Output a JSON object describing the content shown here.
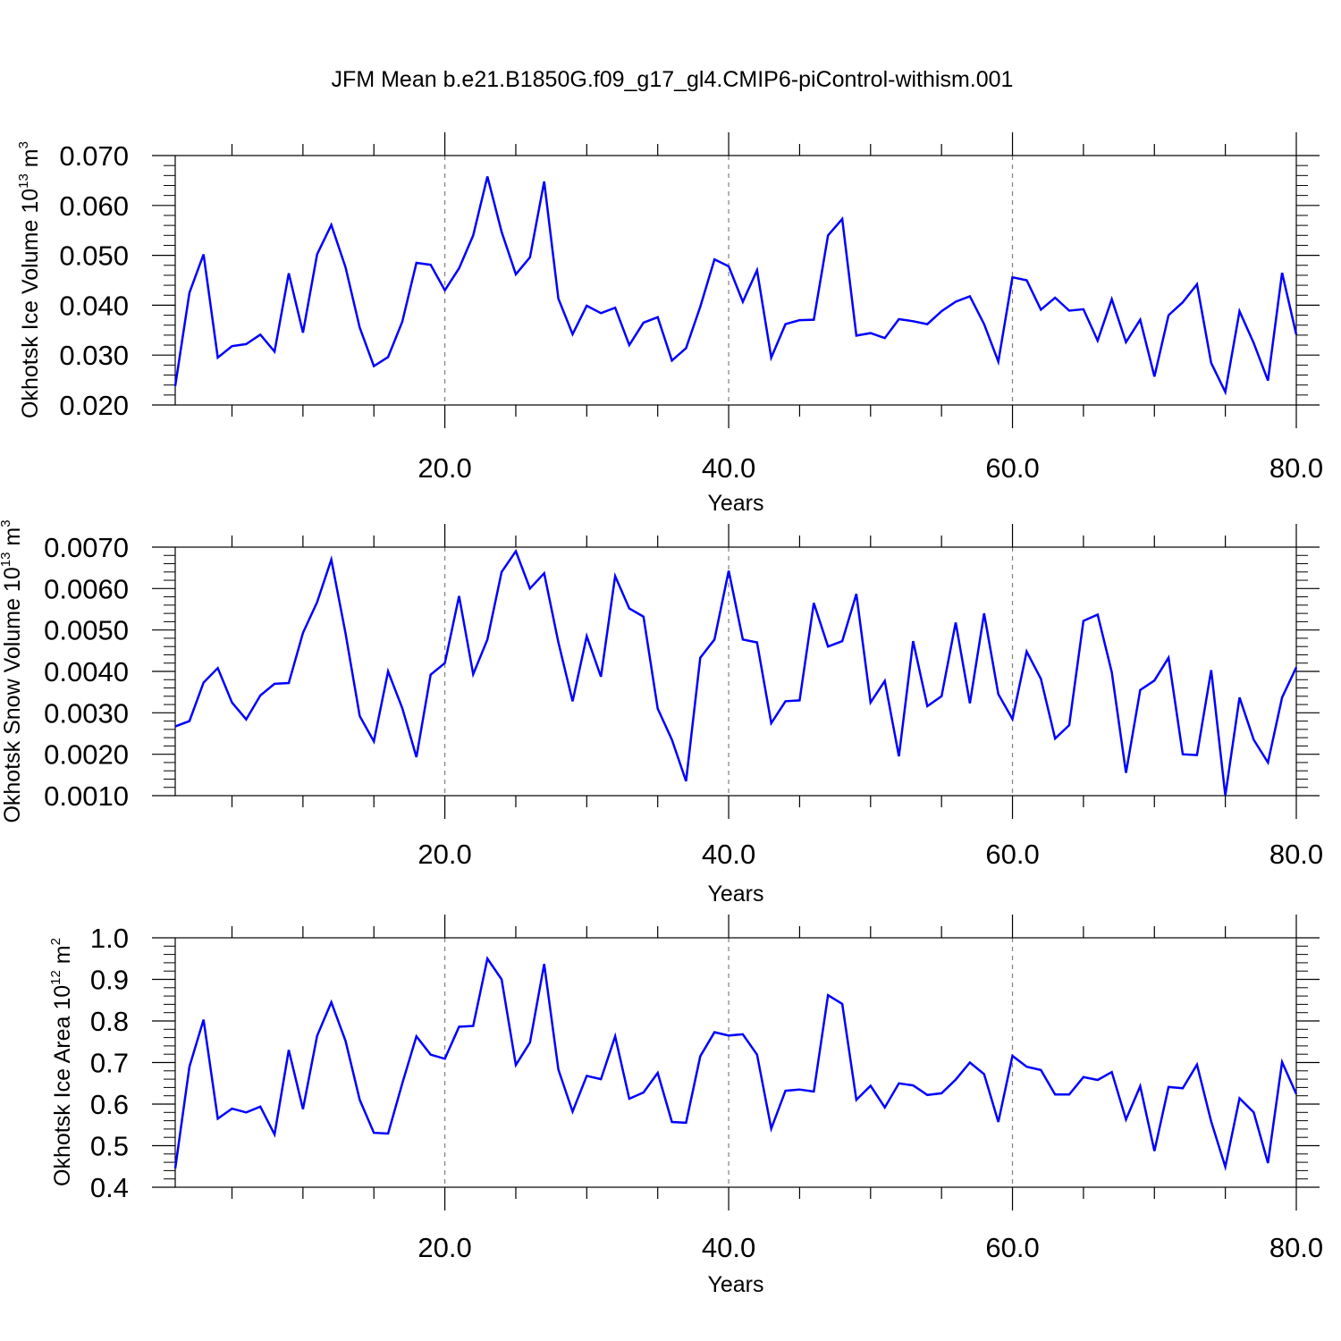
{
  "title": "JFM Mean b.e21.B1850G.f09_g17_gl4.CMIP6-piControl-withism.001",
  "colors": {
    "line": "#0000ff",
    "axis": "#000000",
    "grid": "#808080"
  },
  "chart_data": [
    {
      "type": "line",
      "xlabel": "Years",
      "ylabel": {
        "text": "Okhotsk Ice Volume 10",
        "exp": "13",
        "unit": "m",
        "unit_exp": "3"
      },
      "xlim": [
        1,
        80
      ],
      "ylim": [
        0.02,
        0.07
      ],
      "xticks": [
        20,
        40,
        60,
        80
      ],
      "xtick_labels": [
        "20.0",
        "40.0",
        "60.0",
        "80.0"
      ],
      "yticks": [
        0.02,
        0.03,
        0.04,
        0.05,
        0.06,
        0.07
      ],
      "ytick_labels": [
        "0.020",
        "0.030",
        "0.040",
        "0.050",
        "0.060",
        "0.070"
      ],
      "grid": "dashed vertical at major x ticks",
      "series": [
        {
          "values": [
            0.0238,
            0.0425,
            0.0502,
            0.0295,
            0.0318,
            0.0322,
            0.0341,
            0.0307,
            0.0464,
            0.0345,
            0.0502,
            0.0561,
            0.0476,
            0.0355,
            0.0278,
            0.0296,
            0.0367,
            0.0485,
            0.0481,
            0.043,
            0.0474,
            0.054,
            0.0658,
            0.0547,
            0.0462,
            0.0496,
            0.0648,
            0.0413,
            0.0342,
            0.0399,
            0.0384,
            0.0395,
            0.032,
            0.0365,
            0.0376,
            0.0289,
            0.0314,
            0.0397,
            0.0492,
            0.0478,
            0.0407,
            0.047,
            0.0295,
            0.0362,
            0.037,
            0.0371,
            0.054,
            0.0573,
            0.0339,
            0.0344,
            0.0334,
            0.0372,
            0.0368,
            0.0362,
            0.0388,
            0.0407,
            0.0418,
            0.0362,
            0.0287,
            0.0456,
            0.045,
            0.0391,
            0.0415,
            0.0389,
            0.0392,
            0.0329,
            0.0412,
            0.0326,
            0.0371,
            0.0257,
            0.038,
            0.0406,
            0.0442,
            0.0284,
            0.0226,
            0.0388,
            0.0324,
            0.0249,
            0.0465,
            0.0341
          ]
        }
      ]
    },
    {
      "type": "line",
      "xlabel": "Years",
      "ylabel": {
        "text": "Okhotsk Snow Volume 10",
        "exp": "13",
        "unit": "m",
        "unit_exp": "3"
      },
      "xlim": [
        1,
        80
      ],
      "ylim": [
        0.001,
        0.007
      ],
      "xticks": [
        20,
        40,
        60,
        80
      ],
      "xtick_labels": [
        "20.0",
        "40.0",
        "60.0",
        "80.0"
      ],
      "yticks": [
        0.001,
        0.002,
        0.003,
        0.004,
        0.005,
        0.006,
        0.007
      ],
      "ytick_labels": [
        "0.0010",
        "0.0020",
        "0.0030",
        "0.0040",
        "0.0050",
        "0.0060",
        "0.0070"
      ],
      "grid": "dashed vertical at major x ticks",
      "series": [
        {
          "values": [
            0.00267,
            0.0028,
            0.00373,
            0.00408,
            0.00325,
            0.00284,
            0.00342,
            0.0037,
            0.00372,
            0.00493,
            0.00567,
            0.0067,
            0.00492,
            0.00292,
            0.00231,
            0.004,
            0.00311,
            0.00193,
            0.00392,
            0.0042,
            0.00582,
            0.00393,
            0.00477,
            0.0064,
            0.0069,
            0.006,
            0.00637,
            0.0047,
            0.00328,
            0.00485,
            0.00387,
            0.0063,
            0.00552,
            0.00532,
            0.0031,
            0.00235,
            0.00135,
            0.00433,
            0.00477,
            0.00643,
            0.00477,
            0.0047,
            0.00275,
            0.00328,
            0.0033,
            0.00565,
            0.0046,
            0.00473,
            0.00587,
            0.00325,
            0.00377,
            0.00195,
            0.00473,
            0.00316,
            0.0034,
            0.00518,
            0.00323,
            0.0054,
            0.00345,
            0.00285,
            0.00448,
            0.00382,
            0.00238,
            0.0027,
            0.00522,
            0.00537,
            0.00398,
            0.00155,
            0.00355,
            0.00378,
            0.00433,
            0.002,
            0.00198,
            0.00403,
            0.001,
            0.00337,
            0.00235,
            0.0018,
            0.00337,
            0.0041
          ]
        }
      ]
    },
    {
      "type": "line",
      "xlabel": "Years",
      "ylabel": {
        "text": "Okhotsk Ice Area 10",
        "exp": "12",
        "unit": "m",
        "unit_exp": "2"
      },
      "xlim": [
        1,
        80
      ],
      "ylim": [
        0.4,
        1.0
      ],
      "xticks": [
        20,
        40,
        60,
        80
      ],
      "xtick_labels": [
        "20.0",
        "40.0",
        "60.0",
        "80.0"
      ],
      "yticks": [
        0.4,
        0.5,
        0.6,
        0.7,
        0.8,
        0.9,
        1.0
      ],
      "ytick_labels": [
        "0.4",
        "0.5",
        "0.6",
        "0.7",
        "0.8",
        "0.9",
        "1.0"
      ],
      "grid": "dashed vertical at major x ticks",
      "series": [
        {
          "values": [
            0.445,
            0.69,
            0.803,
            0.565,
            0.589,
            0.58,
            0.594,
            0.527,
            0.73,
            0.588,
            0.764,
            0.845,
            0.752,
            0.61,
            0.531,
            0.529,
            0.65,
            0.763,
            0.719,
            0.709,
            0.786,
            0.788,
            0.95,
            0.9,
            0.694,
            0.748,
            0.937,
            0.683,
            0.582,
            0.668,
            0.66,
            0.763,
            0.613,
            0.628,
            0.675,
            0.557,
            0.555,
            0.715,
            0.773,
            0.765,
            0.768,
            0.719,
            0.541,
            0.632,
            0.635,
            0.63,
            0.862,
            0.841,
            0.61,
            0.644,
            0.592,
            0.65,
            0.645,
            0.622,
            0.626,
            0.659,
            0.7,
            0.672,
            0.557,
            0.716,
            0.69,
            0.682,
            0.623,
            0.623,
            0.665,
            0.658,
            0.677,
            0.563,
            0.643,
            0.487,
            0.641,
            0.638,
            0.695,
            0.558,
            0.449,
            0.614,
            0.58,
            0.458,
            0.701,
            0.624
          ]
        }
      ]
    }
  ]
}
